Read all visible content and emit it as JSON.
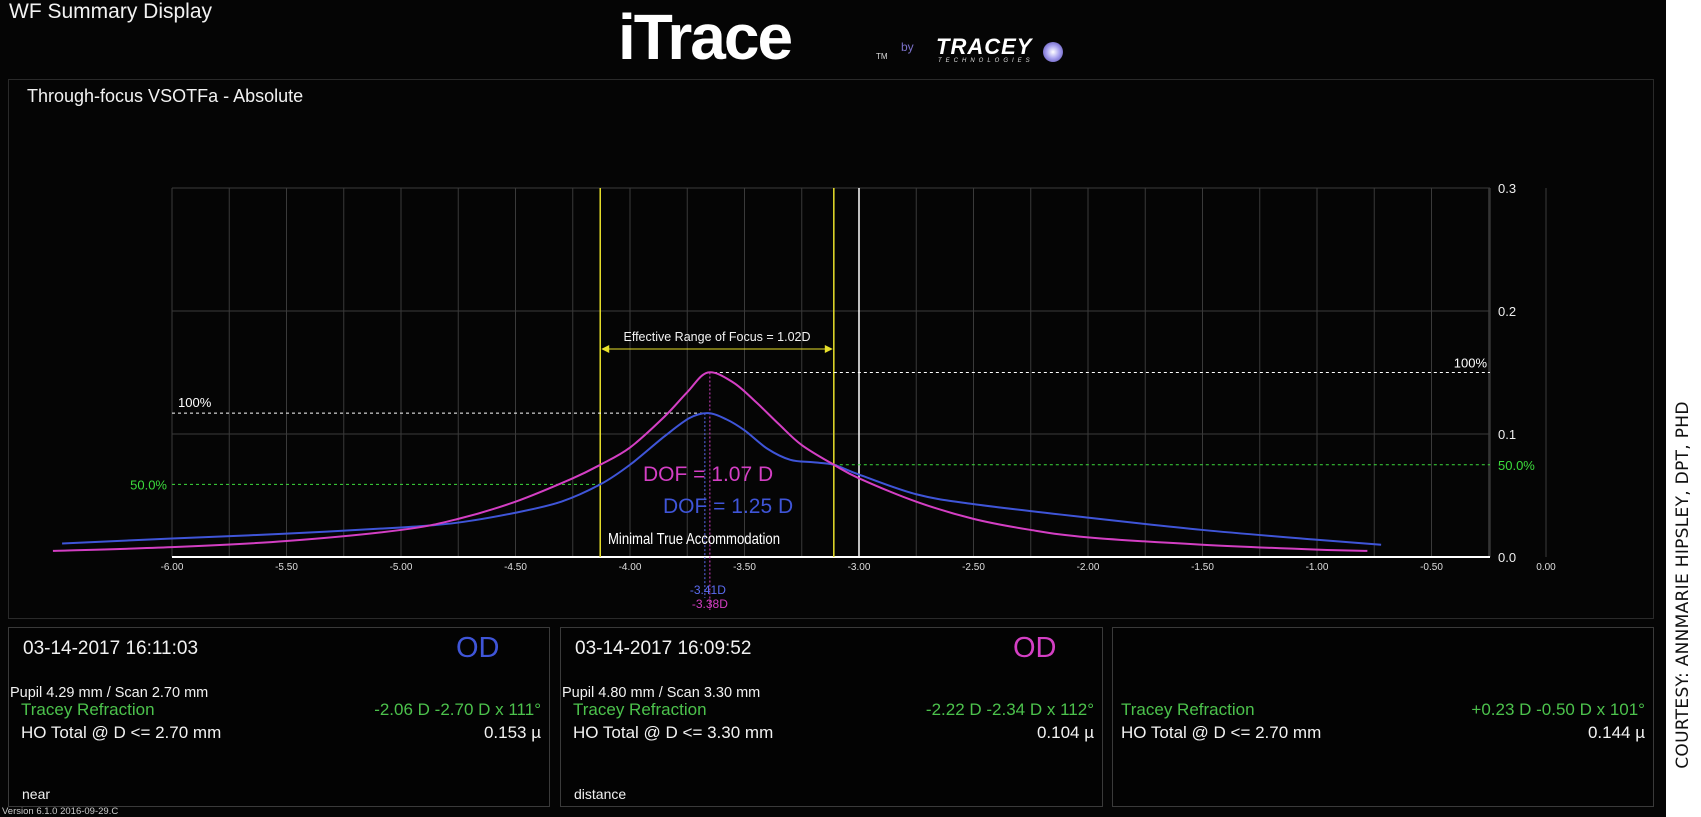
{
  "header": {
    "title": "WF Summary Display"
  },
  "logo": {
    "brand": "iTrace",
    "tm": "TM",
    "by": "by",
    "company": "TRACEY",
    "company_sub": "TECHNOLOGIES"
  },
  "chart_data": {
    "type": "line",
    "title": "Through-focus VSOTFa  - Absolute",
    "xlim": [
      -6.0,
      0.0
    ],
    "ylim": [
      0.0,
      0.3
    ],
    "grid": true,
    "x_ticks": [
      "-6.00",
      "-5.50",
      "-5.00",
      "-4.50",
      "-4.00",
      "-3.50",
      "-3.00",
      "-2.50",
      "-2.00",
      "-1.50",
      "-1.00",
      "-0.50",
      "0.00"
    ],
    "x_tick_values": [
      -6.0,
      -5.5,
      -5.0,
      -4.5,
      -4.0,
      -3.5,
      -3.0,
      -2.5,
      -2.0,
      -1.5,
      -1.0,
      -0.5,
      0.0
    ],
    "y_ticks": [
      "0.3",
      "0.2",
      "0.1",
      "0.0"
    ],
    "y_tick_values": [
      0.3,
      0.2,
      0.1,
      0.0
    ],
    "series": [
      {
        "color": "#3f55d8",
        "points": [
          [
            -6.48,
            0.011
          ],
          [
            -6.0,
            0.015
          ],
          [
            -5.5,
            0.019
          ],
          [
            -5.0,
            0.024
          ],
          [
            -4.75,
            0.028
          ],
          [
            -4.5,
            0.036
          ],
          [
            -4.3,
            0.045
          ],
          [
            -4.13,
            0.059
          ],
          [
            -4.0,
            0.075
          ],
          [
            -3.85,
            0.098
          ],
          [
            -3.74,
            0.113
          ],
          [
            -3.66,
            0.117
          ],
          [
            -3.58,
            0.112
          ],
          [
            -3.5,
            0.103
          ],
          [
            -3.4,
            0.088
          ],
          [
            -3.3,
            0.079
          ],
          [
            -3.2,
            0.077
          ],
          [
            -3.11,
            0.075
          ],
          [
            -3.0,
            0.067
          ],
          [
            -2.75,
            0.051
          ],
          [
            -2.5,
            0.043
          ],
          [
            -2.0,
            0.032
          ],
          [
            -1.5,
            0.022
          ],
          [
            -1.0,
            0.014
          ],
          [
            -0.72,
            0.01
          ]
        ]
      },
      {
        "color": "#d43fc4",
        "points": [
          [
            -6.52,
            0.005
          ],
          [
            -6.0,
            0.008
          ],
          [
            -5.5,
            0.013
          ],
          [
            -5.0,
            0.022
          ],
          [
            -4.75,
            0.031
          ],
          [
            -4.5,
            0.045
          ],
          [
            -4.25,
            0.064
          ],
          [
            -4.13,
            0.075
          ],
          [
            -4.0,
            0.089
          ],
          [
            -3.85,
            0.114
          ],
          [
            -3.75,
            0.134
          ],
          [
            -3.66,
            0.15
          ],
          [
            -3.55,
            0.142
          ],
          [
            -3.45,
            0.126
          ],
          [
            -3.35,
            0.108
          ],
          [
            -3.25,
            0.091
          ],
          [
            -3.11,
            0.075
          ],
          [
            -3.0,
            0.064
          ],
          [
            -2.75,
            0.045
          ],
          [
            -2.5,
            0.031
          ],
          [
            -2.25,
            0.022
          ],
          [
            -2.0,
            0.016
          ],
          [
            -1.5,
            0.01
          ],
          [
            -1.0,
            0.006
          ],
          [
            -0.78,
            0.005
          ]
        ]
      }
    ],
    "reference_lines": {
      "yellow_x": [
        -4.13,
        -3.11
      ],
      "white_x": -3.0,
      "blue_100": {
        "label": "100%",
        "value": 0.117,
        "color": "#ffffff"
      },
      "blue_50": {
        "label": "50.0%",
        "value": 0.059,
        "color": "#3cdc3c"
      },
      "magenta_100": {
        "label": "100%",
        "value": 0.15,
        "color": "#ffffff"
      },
      "magenta_50": {
        "label": "50.0%",
        "value": 0.075,
        "color": "#3cdc3c"
      }
    },
    "annotations": {
      "effective_range": "Effective Range of Focus = 1.02D",
      "dof_magenta": "DOF = 1.07 D",
      "dof_blue": "DOF = 1.25 D",
      "minimal_accommodation": "Minimal True Accommodation",
      "peak_blue_label": "-3.41D",
      "peak_magenta_label": "-3.38D"
    }
  },
  "panels": [
    {
      "date": "03-14-2017  16:11:03",
      "eye": "OD",
      "eye_color": "#3f55d8",
      "pupil": "Pupil 4.29 mm  /  Scan 2.70 mm",
      "refraction_label": "Tracey Refraction",
      "refraction_value": "-2.06 D -2.70 D x 111°",
      "ho_label": "HO Total @ D <= 2.70 mm",
      "ho_value": "0.153 µ",
      "tag": "near"
    },
    {
      "date": "03-14-2017  16:09:52",
      "eye": "OD",
      "eye_color": "#d43fc4",
      "pupil": "Pupil 4.80 mm  /  Scan 3.30 mm",
      "refraction_label": "Tracey Refraction",
      "refraction_value": "-2.22 D -2.34 D x 112°",
      "ho_label": "HO Total @ D <= 3.30 mm",
      "ho_value": "0.104 µ",
      "tag": "distance"
    },
    {
      "refraction_label": "Tracey Refraction",
      "refraction_value": "+0.23 D -0.50 D x 101°",
      "ho_label": "HO Total @ D <= 2.70 mm",
      "ho_value": "0.144 µ"
    }
  ],
  "footer": {
    "version": "Version 6.1.0 2016-09-29.C"
  },
  "credit": "COURTESY: ANNMARIE HIPSLEY, DPT, PHD"
}
